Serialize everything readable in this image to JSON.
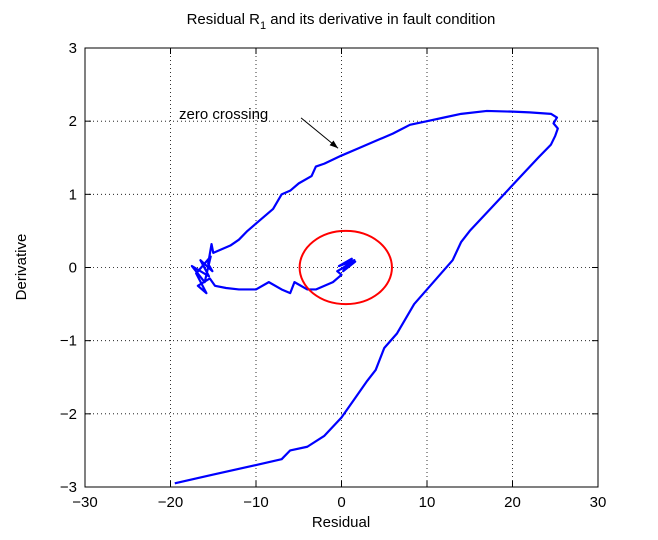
{
  "chart_data": {
    "type": "line",
    "title": [
      "Residual R",
      "1",
      " and its derivative in fault condition"
    ],
    "xlabel": "Residual",
    "ylabel": "Derivative",
    "xlim": [
      -30,
      30
    ],
    "ylim": [
      -3,
      3
    ],
    "xticks": [
      {
        "value": -30,
        "label": "−30"
      },
      {
        "value": -20,
        "label": "−20"
      },
      {
        "value": -10,
        "label": "−10"
      },
      0,
      10,
      20,
      30
    ],
    "yticks": [
      {
        "value": -3,
        "label": "−3"
      },
      {
        "value": -2,
        "label": "−2"
      },
      {
        "value": -1,
        "label": "−1"
      },
      0,
      1,
      2,
      3
    ],
    "grid": true,
    "series": [
      {
        "color": "#0000ff",
        "x": [
          -19.5,
          -15,
          -10,
          -7,
          -6,
          -4,
          -2,
          0,
          1.5,
          3,
          4,
          5,
          6.5,
          7.5,
          8.5,
          10,
          11.5,
          13,
          14,
          15,
          17,
          19,
          21,
          23,
          24.5,
          25,
          25.3,
          24.8,
          25.2,
          24.5,
          22,
          20,
          17,
          14,
          12,
          10,
          8,
          6,
          4,
          2,
          0,
          -2,
          -3,
          -3.5,
          -5,
          -6,
          -7,
          -8,
          -10,
          -11,
          -12,
          -13,
          -15,
          -15.2,
          -15.6,
          -15.1,
          -16.5,
          -15.5,
          -17.5,
          -16,
          -15.3,
          -17,
          -15.8,
          -16.8,
          -15.4,
          -14.8,
          -13.5,
          -12,
          -10,
          -8.5,
          -7,
          -6,
          -5.5,
          -4,
          -3,
          -1,
          0,
          -0.5,
          1,
          0,
          1.5,
          -0.3,
          1.2,
          0.2,
          1.6,
          0.4,
          1.3
        ],
        "y": [
          -2.95,
          -2.83,
          -2.7,
          -2.62,
          -2.5,
          -2.45,
          -2.3,
          -2.05,
          -1.8,
          -1.55,
          -1.4,
          -1.1,
          -0.9,
          -0.7,
          -0.5,
          -0.3,
          -0.1,
          0.1,
          0.35,
          0.5,
          0.75,
          1.0,
          1.25,
          1.5,
          1.68,
          1.8,
          1.9,
          1.97,
          2.05,
          2.1,
          2.12,
          2.13,
          2.14,
          2.1,
          2.05,
          2.0,
          1.95,
          1.83,
          1.73,
          1.63,
          1.53,
          1.42,
          1.38,
          1.25,
          1.15,
          1.05,
          1.0,
          0.8,
          0.6,
          0.5,
          0.38,
          0.3,
          0.2,
          0.32,
          0.05,
          -0.05,
          0.1,
          -0.12,
          0.02,
          -0.2,
          0.15,
          -0.08,
          -0.35,
          -0.25,
          -0.15,
          -0.25,
          -0.28,
          -0.3,
          -0.3,
          -0.2,
          -0.3,
          -0.35,
          -0.2,
          -0.3,
          -0.3,
          -0.2,
          -0.1,
          -0.05,
          0.05,
          -0.02,
          0.1,
          0.02,
          0.12,
          -0.05,
          0.08,
          0.0,
          0.1
        ]
      }
    ],
    "circle": {
      "center": [
        0.5,
        0
      ],
      "rx": 5.4,
      "ry": 0.5,
      "color": "#ff0000"
    },
    "annotation": {
      "text": "zero crossing",
      "xy": [
        -0.4,
        1.63
      ],
      "xytext": [
        -19,
        2.1
      ]
    }
  }
}
